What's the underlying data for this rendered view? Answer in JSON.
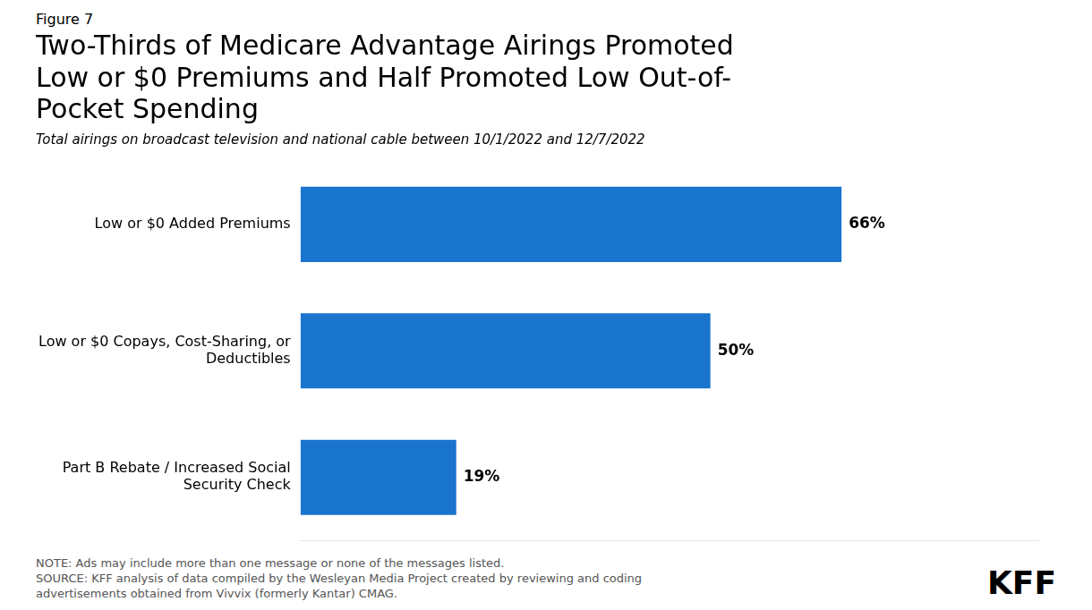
{
  "chart_data": {
    "type": "bar",
    "orientation": "horizontal",
    "figure_label": "Figure 7",
    "title": "Two-Thirds of Medicare Advantage Airings Promoted\nLow or $0 Premiums and Half Promoted Low Out-of-\nPocket Spending",
    "subtitle": "Total airings on broadcast television and national cable between 10/1/2022 and 12/7/2022",
    "categories": [
      "Low or $0 Added Premiums",
      "Low or $0 Copays, Cost-Sharing, or\nDeductibles",
      "Part B Rebate / Increased Social\nSecurity Check"
    ],
    "values": [
      66,
      50,
      19
    ],
    "value_labels": [
      "66%",
      "50%",
      "19%"
    ],
    "color": "#1874CD",
    "xlim": [
      0,
      90
    ],
    "data_labels": true,
    "tick_labels": "y",
    "grid": false,
    "notes": [
      "NOTE: Ads may include more than one message or none of the messages listed.",
      "SOURCE: KFF analysis of data compiled by the Wesleyan Media Project created by reviewing and coding",
      "advertisements obtained from Vivvix (formerly Kantar) CMAG."
    ],
    "logo": "KFF"
  }
}
